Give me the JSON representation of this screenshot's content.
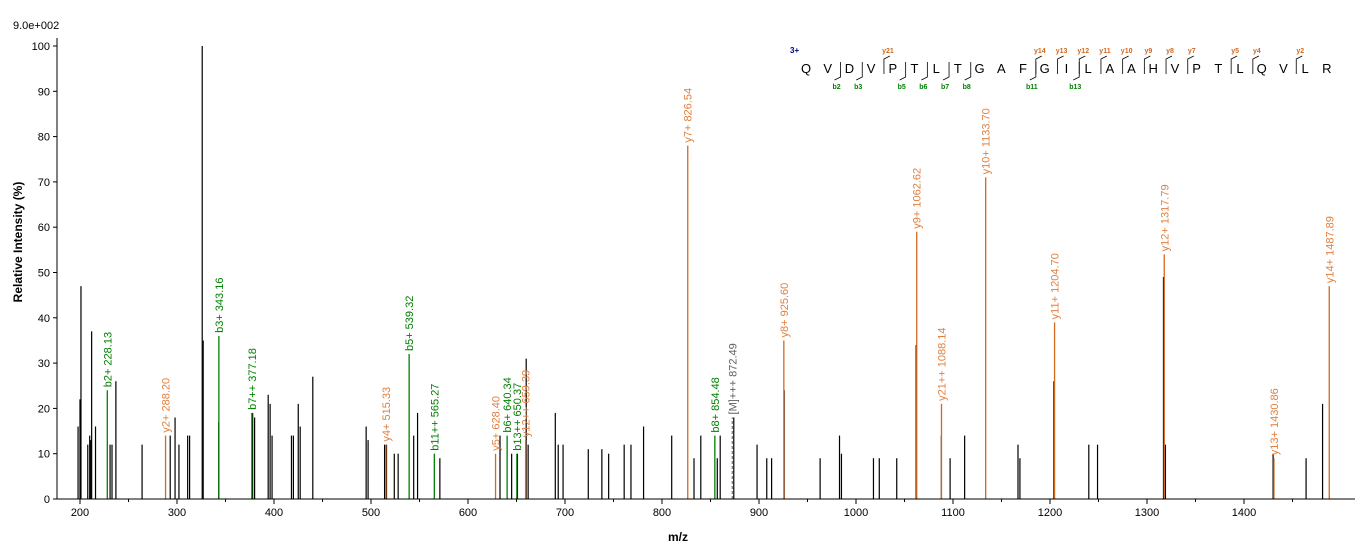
{
  "chart_data": {
    "type": "bar",
    "title": "",
    "intensity_scale": "9.0e+002",
    "xlabel": "m/z",
    "ylabel": "Relative  Intensity (%)",
    "xlim": [
      190,
      1480
    ],
    "ylim": [
      0,
      100
    ],
    "xticks": [
      200,
      300,
      400,
      500,
      600,
      700,
      800,
      900,
      1000,
      1100,
      1200,
      1300,
      1400
    ],
    "yticks": [
      0,
      10,
      20,
      30,
      40,
      50,
      60,
      70,
      80,
      90,
      100
    ],
    "colors": {
      "b": "#008000",
      "y": "#d2691e",
      "y_label": "#e08040",
      "precursor": "#808080",
      "unassigned": "#000000",
      "charge": "#000080"
    },
    "peaks": {
      "unassigned": [
        [
          198,
          16
        ],
        [
          200,
          22
        ],
        [
          201,
          47
        ],
        [
          208,
          12
        ],
        [
          210,
          14
        ],
        [
          211,
          13
        ],
        [
          212,
          37
        ],
        [
          216,
          16
        ],
        [
          231,
          12
        ],
        [
          233,
          12
        ],
        [
          237,
          26
        ],
        [
          264,
          12
        ],
        [
          293,
          14
        ],
        [
          298,
          18
        ],
        [
          302,
          12
        ],
        [
          311,
          14
        ],
        [
          313,
          14
        ],
        [
          326,
          100
        ],
        [
          327,
          35
        ],
        [
          343,
          17
        ],
        [
          378,
          19
        ],
        [
          380,
          18
        ],
        [
          394,
          23
        ],
        [
          396,
          21
        ],
        [
          398,
          14
        ],
        [
          418,
          14
        ],
        [
          420,
          14
        ],
        [
          425,
          21
        ],
        [
          427,
          16
        ],
        [
          440,
          27
        ],
        [
          495,
          16
        ],
        [
          497,
          13
        ],
        [
          514,
          12
        ],
        [
          516,
          12
        ],
        [
          524,
          10
        ],
        [
          528,
          10
        ],
        [
          544,
          14
        ],
        [
          548,
          19
        ],
        [
          571,
          9
        ],
        [
          633,
          14
        ],
        [
          645,
          10
        ],
        [
          651,
          10
        ],
        [
          660,
          31
        ],
        [
          662,
          12
        ],
        [
          690,
          19
        ],
        [
          693,
          12
        ],
        [
          698,
          12
        ],
        [
          724,
          11
        ],
        [
          738,
          11
        ],
        [
          745,
          10
        ],
        [
          761,
          12
        ],
        [
          768,
          12
        ],
        [
          781,
          16
        ],
        [
          810,
          14
        ],
        [
          833,
          9
        ],
        [
          840,
          14
        ],
        [
          857,
          9
        ],
        [
          860,
          14
        ],
        [
          874,
          18
        ],
        [
          898,
          12
        ],
        [
          908,
          9
        ],
        [
          913,
          9
        ],
        [
          926,
          24
        ],
        [
          963,
          9
        ],
        [
          983,
          14
        ],
        [
          985,
          10
        ],
        [
          1018,
          9
        ],
        [
          1024,
          9
        ],
        [
          1042,
          9
        ],
        [
          1062,
          34
        ],
        [
          1088,
          14
        ],
        [
          1097,
          9
        ],
        [
          1112,
          14
        ],
        [
          1167,
          12
        ],
        [
          1169,
          9
        ],
        [
          1204,
          26
        ],
        [
          1240,
          12
        ],
        [
          1249,
          12
        ],
        [
          1317,
          49
        ],
        [
          1319,
          12
        ],
        [
          1430,
          10
        ],
        [
          1464,
          9
        ],
        [
          1481,
          21
        ]
      ],
      "b": [
        {
          "mz": 228.13,
          "int": 24,
          "label": "b2+ 228.13"
        },
        {
          "mz": 343.16,
          "int": 36,
          "label": "b3+ 343.16"
        },
        {
          "mz": 377.18,
          "int": 19,
          "label": "b7++ 377.18"
        },
        {
          "mz": 539.32,
          "int": 32,
          "label": "b5+ 539.32"
        },
        {
          "mz": 565.27,
          "int": 10,
          "label": "b11++ 565.27"
        },
        {
          "mz": 640.34,
          "int": 14,
          "label": "b6+ 640.34"
        },
        {
          "mz": 650.37,
          "int": 10,
          "label": "b13++ 650.37"
        },
        {
          "mz": 854.48,
          "int": 14,
          "label": "b8+ 854.48"
        }
      ],
      "y": [
        {
          "mz": 288.2,
          "int": 14,
          "label": "y2+ 288.20"
        },
        {
          "mz": 515.33,
          "int": 12,
          "label": "y4+ 515.33"
        },
        {
          "mz": 628.4,
          "int": 10,
          "label": "y5+ 628.40"
        },
        {
          "mz": 659.39,
          "int": 13,
          "label": "y12++ 659.39"
        },
        {
          "mz": 826.54,
          "int": 78,
          "label": "y7+ 826.54"
        },
        {
          "mz": 925.6,
          "int": 35,
          "label": "y8+ 925.60"
        },
        {
          "mz": 1062.62,
          "int": 59,
          "label": "y9+ 1062.62"
        },
        {
          "mz": 1088.14,
          "int": 21,
          "label": "y21++ 1088.14"
        },
        {
          "mz": 1133.7,
          "int": 71,
          "label": "y10+ 1133.70"
        },
        {
          "mz": 1204.7,
          "int": 39,
          "label": "y11+ 1204.70"
        },
        {
          "mz": 1317.79,
          "int": 54,
          "label": "y12+ 1317.79"
        },
        {
          "mz": 1430.86,
          "int": 9,
          "label": "y13+ 1430.86"
        },
        {
          "mz": 1487.89,
          "int": 47,
          "label": "y14+ 1487.89"
        }
      ],
      "precursor": [
        {
          "mz": 872.49,
          "int": 18,
          "label": "[M]+++ 872.49"
        }
      ]
    },
    "sequence": {
      "charge": "3+",
      "residues": [
        "Q",
        "V",
        "D",
        "V",
        "P",
        "T",
        "L",
        "T",
        "G",
        "A",
        "F",
        "G",
        "I",
        "L",
        "A",
        "A",
        "H",
        "V",
        "P",
        "T",
        "L",
        "Q",
        "V",
        "L",
        "R"
      ],
      "b_ions": [
        {
          "after": 2,
          "label": "b2"
        },
        {
          "after": 3,
          "label": "b3"
        },
        {
          "after": 5,
          "label": "b5"
        },
        {
          "after": 6,
          "label": "b6"
        },
        {
          "after": 7,
          "label": "b7"
        },
        {
          "after": 8,
          "label": "b8"
        },
        {
          "after": 11,
          "label": "b11"
        },
        {
          "after": 13,
          "label": "b13"
        }
      ],
      "y_ions": [
        {
          "after": 4,
          "label": "y21"
        },
        {
          "after": 11,
          "label": "y14"
        },
        {
          "after": 12,
          "label": "y13"
        },
        {
          "after": 13,
          "label": "y12"
        },
        {
          "after": 14,
          "label": "y11"
        },
        {
          "after": 15,
          "label": "y10"
        },
        {
          "after": 16,
          "label": "y9"
        },
        {
          "after": 17,
          "label": "y8"
        },
        {
          "after": 18,
          "label": "y7"
        },
        {
          "after": 20,
          "label": "y5"
        },
        {
          "after": 21,
          "label": "y4"
        },
        {
          "after": 23,
          "label": "y2"
        }
      ]
    }
  }
}
